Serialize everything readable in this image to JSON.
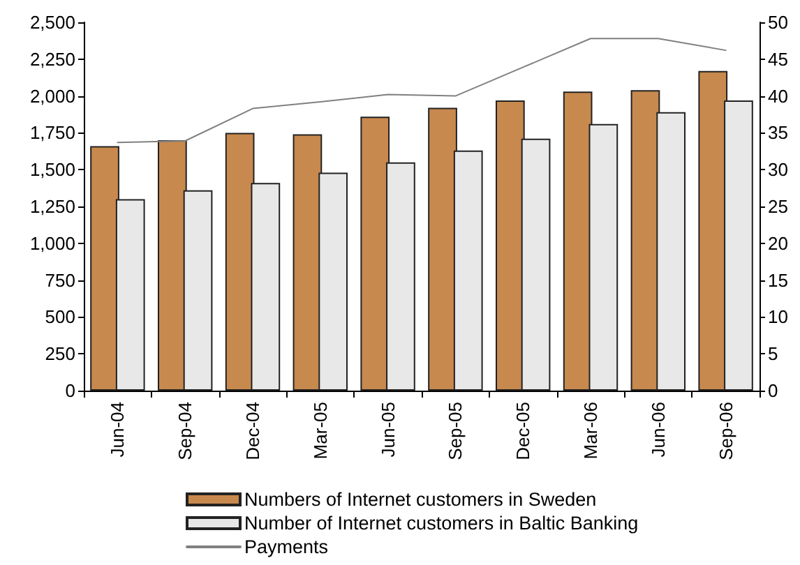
{
  "chart_data": {
    "type": "bar",
    "categories": [
      "Jun-04",
      "Sep-04",
      "Dec-04",
      "Mar-05",
      "Jun-05",
      "Sep-05",
      "Dec-05",
      "Mar-06",
      "Jun-06",
      "Sep-06"
    ],
    "series": [
      {
        "name": "Numbers of Internet customers in Sweden",
        "color": "#c8894e",
        "values": [
          1660,
          1700,
          1750,
          1740,
          1860,
          1920,
          1970,
          2030,
          2040,
          2170
        ]
      },
      {
        "name": "Number of Internet customers in Baltic Banking",
        "color": "#e8e8e8",
        "values": [
          1300,
          1360,
          1410,
          1480,
          1550,
          1630,
          1710,
          1810,
          1890,
          1970
        ]
      },
      {
        "name": "Payments",
        "type": "line",
        "axis": "y2",
        "color": "#808080",
        "values": [
          33.7,
          33.9,
          38.3,
          39.2,
          40.2,
          40.0,
          43.9,
          47.8,
          47.8,
          46.2
        ]
      }
    ],
    "ylim": [
      0,
      2500
    ],
    "yticks": [
      0,
      250,
      500,
      750,
      {
        "value": 1000,
        "label": "1,000"
      },
      {
        "value": 1250,
        "label": "1,250"
      },
      {
        "value": 1500,
        "label": "1,500"
      },
      {
        "value": 1750,
        "label": "1,750"
      },
      {
        "value": 2000,
        "label": "2,000"
      },
      {
        "value": 2250,
        "label": "2,250"
      },
      {
        "value": 2500,
        "label": "2,500"
      }
    ],
    "y2lim": [
      0,
      50
    ],
    "y2ticks": [
      0,
      5,
      10,
      15,
      20,
      25,
      30,
      35,
      40,
      45,
      50
    ],
    "legend": "bottom",
    "grid": false,
    "marker": "none",
    "line_style": "solid"
  }
}
